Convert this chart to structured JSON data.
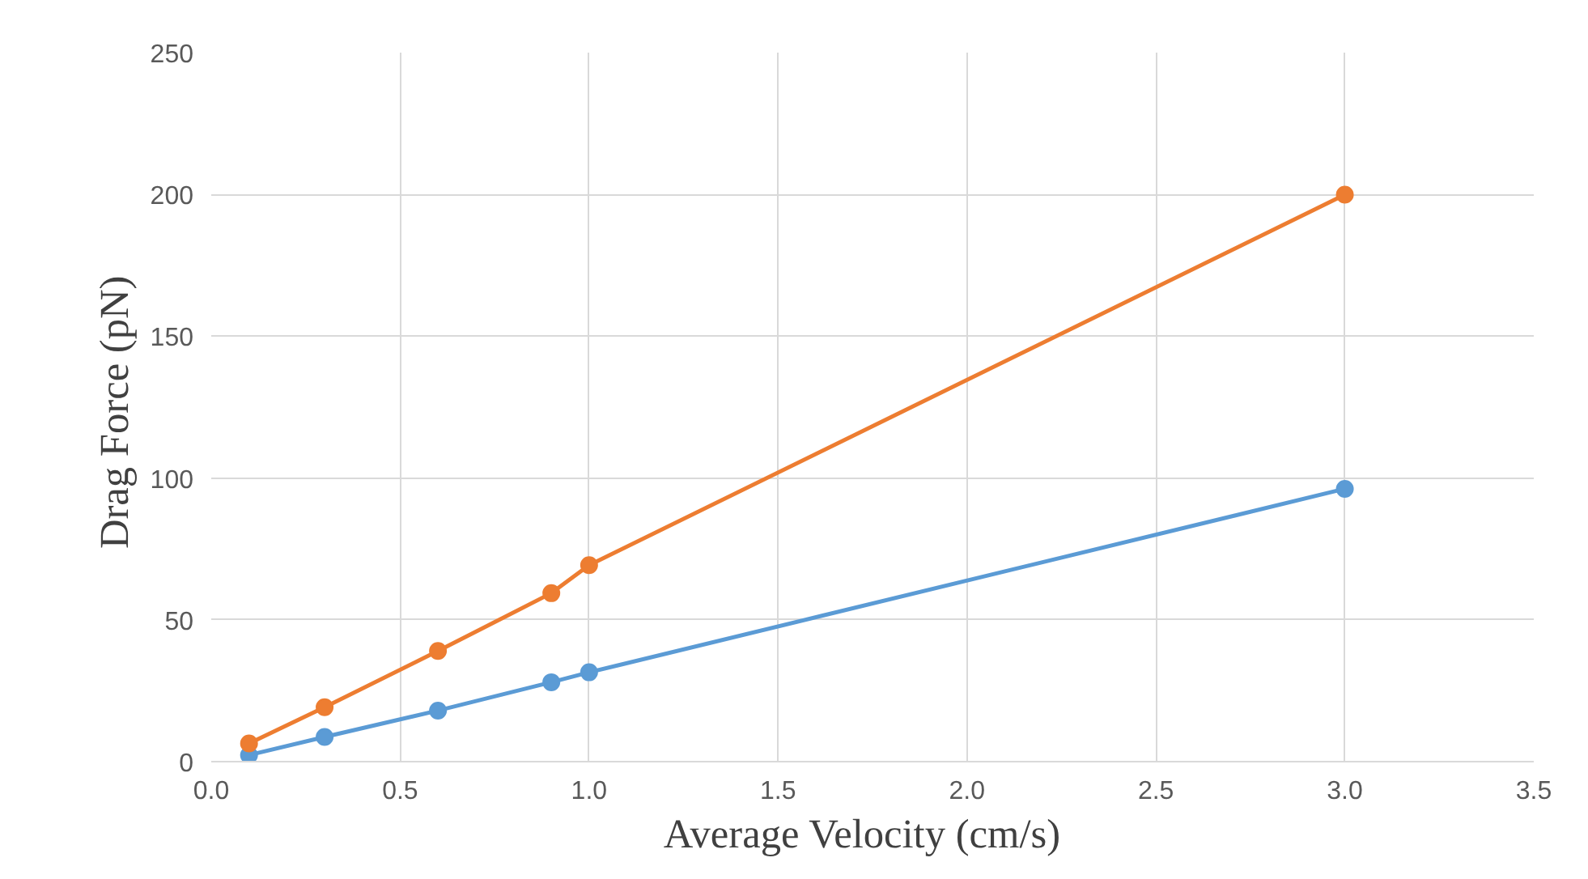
{
  "chart_data": {
    "type": "line",
    "xlabel": "Average  Velocity  (cm/s)",
    "ylabel": "Drag Force  (pN)",
    "x": [
      0.1,
      0.3,
      0.6,
      0.9,
      1.0,
      3.0
    ],
    "series": [
      {
        "color": "#5b9bd5",
        "values": [
          2.3,
          8.7,
          18,
          28,
          31.5,
          96.2
        ]
      },
      {
        "color": "#ed7d31",
        "values": [
          6.4,
          19.2,
          39,
          59.4,
          69.3,
          199.9
        ]
      }
    ],
    "xlim": [
      0,
      3.5
    ],
    "xticks": [
      {
        "value": 0,
        "label": "0.0"
      },
      {
        "value": 0.5,
        "label": "0.5"
      },
      {
        "value": 1,
        "label": "1.0"
      },
      {
        "value": 1.5,
        "label": "1.5"
      },
      {
        "value": 2,
        "label": "2.0"
      },
      {
        "value": 2.5,
        "label": "2.5"
      },
      {
        "value": 3,
        "label": "3.0"
      },
      {
        "value": 3.5,
        "label": "3.5"
      }
    ],
    "ylim": [
      0,
      250
    ],
    "yticks": [
      0,
      50,
      100,
      150,
      200,
      250
    ],
    "grid": true,
    "marker": "circle",
    "line_style": "solid"
  }
}
